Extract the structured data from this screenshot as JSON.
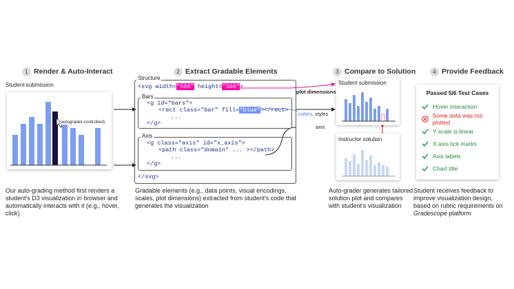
{
  "steps": [
    {
      "number": "1",
      "title": "Render & Auto-Interact",
      "caption": "Our auto-grading method first renders a student's D3 visualization in browser and automatically interacts with it (e.g., hover, click)"
    },
    {
      "number": "2",
      "title": "Extract Gradable Elements",
      "caption": "Gradable elements (e.g., data points, visual encodings, scales, plot dimensions) extracted from student's code that generates the visualization"
    },
    {
      "number": "3",
      "title": "Compare to Solution",
      "caption": "Auto-grader generates tailored solution plot and compares with student's visualization"
    },
    {
      "number": "4",
      "title": "Provide Feedback",
      "caption_parts": [
        "Student receives feedback to improve visualization design, based on rubric requirements on ",
        "Gradescope",
        " platform"
      ]
    }
  ],
  "render": {
    "label": "Student submission",
    "cursor_note": "(autograder-controlled)"
  },
  "code": {
    "structure_label": "Structure",
    "svg_open": [
      "<svg width=",
      "\"500\"",
      " height=",
      "\"300\"",
      ">"
    ],
    "bars_label": "Bars",
    "bars_lines": [
      "<g id=\"bars\">",
      "<rect class=\"bar\" fill=",
      "\"blue\"",
      "></rect>",
      "...",
      "</g>"
    ],
    "axis_label": "Axis",
    "axis_lines": [
      "<g class=\"axis\" id=\"x_axis\">",
      "<path class=\"domain\" ... ></path>",
      "...",
      "</g>"
    ],
    "svg_close": "</svg>"
  },
  "compare": {
    "plot_dimensions": "plot dimensions",
    "colors": "colors",
    "styles": ", styles",
    "axis": "axis",
    "student_label": "Student submission",
    "instructor_label": "Instructor solution"
  },
  "feedback": {
    "summary": "Passed 5/6 Test Cases",
    "items": [
      {
        "text": "Hover interaction",
        "status": "pass"
      },
      {
        "text": "Some data was not plotted",
        "status": "fail"
      },
      {
        "text": "Y scale is linear",
        "status": "pass"
      },
      {
        "text": "X axis tick marks",
        "status": "pass"
      },
      {
        "text": "Axis labels",
        "status": "pass"
      },
      {
        "text": "Chart title",
        "status": "pass"
      }
    ]
  }
}
